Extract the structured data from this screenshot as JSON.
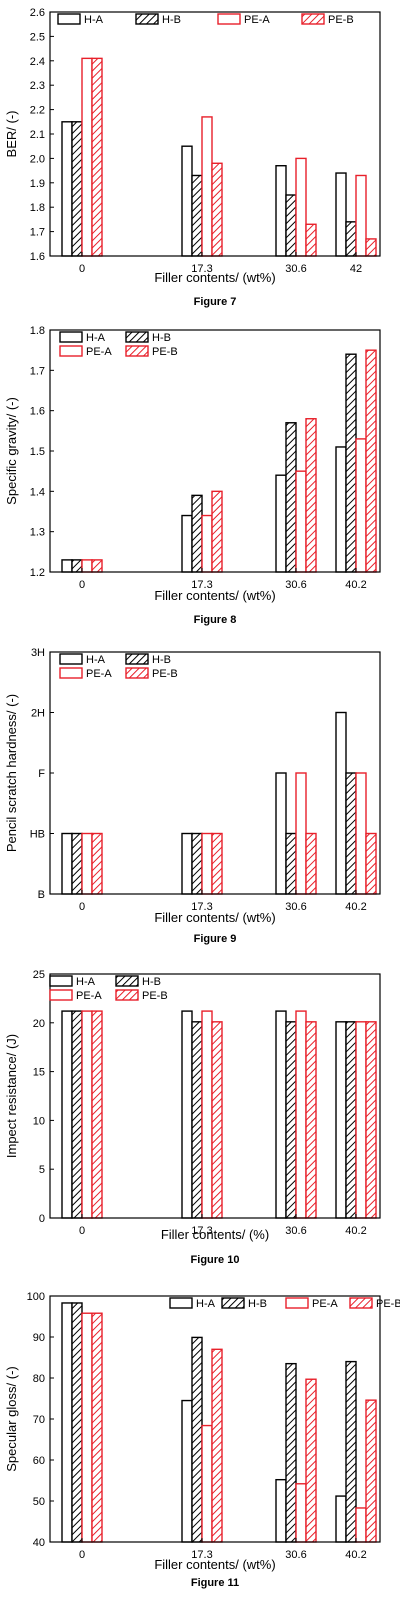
{
  "series_styles": [
    {
      "stroke": "#000000",
      "hatch": false
    },
    {
      "stroke": "#000000",
      "hatch": true
    },
    {
      "stroke": "#e8202a",
      "hatch": false
    },
    {
      "stroke": "#e8202a",
      "hatch": true
    }
  ],
  "chart_data": [
    {
      "type": "bar",
      "caption": "Figure 7",
      "xlabel": "Filler contents/ (wt%)",
      "ylabel": "BER/ (-)",
      "categories": [
        "0",
        "17.3",
        "30.6",
        "42"
      ],
      "ylim": [
        1.6,
        2.6
      ],
      "yticks": [
        "1.6",
        "1.7",
        "1.8",
        "1.9",
        "2.0",
        "2.1",
        "2.2",
        "2.3",
        "2.4",
        "2.5",
        "2.6"
      ],
      "legend_placement": "top-left",
      "series": [
        {
          "name": "H-A",
          "values": [
            2.15,
            2.05,
            1.97,
            1.94
          ]
        },
        {
          "name": "H-B",
          "values": [
            2.15,
            1.93,
            1.85,
            1.74
          ]
        },
        {
          "name": "PE-A",
          "values": [
            2.41,
            2.17,
            2.0,
            1.93
          ]
        },
        {
          "name": "PE-B",
          "values": [
            2.41,
            1.98,
            1.73,
            1.67
          ]
        }
      ]
    },
    {
      "type": "bar",
      "caption": "Figure 8",
      "xlabel": "Filler contents/ (wt%)",
      "ylabel": "Specific gravity/ (-)",
      "categories": [
        "0",
        "17.3",
        "30.6",
        "40.2"
      ],
      "ylim": [
        1.2,
        1.8
      ],
      "yticks": [
        "1.2",
        "1.3",
        "1.4",
        "1.5",
        "1.6",
        "1.7",
        "1.8"
      ],
      "legend_placement": "top-left",
      "series": [
        {
          "name": "H-A",
          "values": [
            1.23,
            1.34,
            1.44,
            1.51
          ]
        },
        {
          "name": "H-B",
          "values": [
            1.23,
            1.39,
            1.57,
            1.74
          ]
        },
        {
          "name": "PE-A",
          "values": [
            1.23,
            1.34,
            1.45,
            1.53
          ]
        },
        {
          "name": "PE-B",
          "values": [
            1.23,
            1.4,
            1.58,
            1.75
          ]
        }
      ]
    },
    {
      "type": "bar",
      "caption": "Figure 9",
      "xlabel": "Filler contents/ (wt%)",
      "ylabel": "Pencil scratch hardness/ (-)",
      "categories": [
        "0",
        "17.3",
        "30.6",
        "40.2"
      ],
      "ylim": [
        0,
        4
      ],
      "yticks": [
        "B",
        "HB",
        "F",
        "2H",
        "3H"
      ],
      "legend_placement": "top-left",
      "series": [
        {
          "name": "H-A",
          "values": [
            1,
            1,
            2,
            3
          ]
        },
        {
          "name": "H-B",
          "values": [
            1,
            1,
            1,
            2
          ]
        },
        {
          "name": "PE-A",
          "values": [
            1,
            1,
            2,
            2
          ]
        },
        {
          "name": "PE-B",
          "values": [
            1,
            1,
            1,
            1
          ]
        }
      ]
    },
    {
      "type": "bar",
      "caption": "Figure 10",
      "xlabel": "Filler contents/ (%)",
      "ylabel": "Impect resistance/ (J)",
      "categories": [
        "0",
        "17.3",
        "30.6",
        "40.2"
      ],
      "ylim": [
        0,
        25
      ],
      "yticks": [
        "0",
        "5",
        "10",
        "15",
        "20",
        "25"
      ],
      "legend_placement": "top-left",
      "series": [
        {
          "name": "H-A",
          "values": [
            21.2,
            21.2,
            21.2,
            20.1
          ]
        },
        {
          "name": "H-B",
          "values": [
            21.2,
            20.1,
            20.1,
            20.1
          ]
        },
        {
          "name": "PE-A",
          "values": [
            21.2,
            21.2,
            21.2,
            20.1
          ]
        },
        {
          "name": "PE-B",
          "values": [
            21.2,
            20.1,
            20.1,
            20.1
          ]
        }
      ]
    },
    {
      "type": "bar",
      "caption": "Figure 11",
      "xlabel": "Filler contents/ (wt%)",
      "ylabel": "Specular gloss/ (-)",
      "categories": [
        "0",
        "17.3",
        "30.6",
        "40.2"
      ],
      "ylim": [
        40,
        100
      ],
      "yticks": [
        "40",
        "50",
        "60",
        "70",
        "80",
        "90",
        "100"
      ],
      "legend_placement": "top-right",
      "series": [
        {
          "name": "H-A",
          "values": [
            98.3,
            74.5,
            55.2,
            51.2
          ]
        },
        {
          "name": "H-B",
          "values": [
            98.3,
            89.9,
            83.5,
            84.0
          ]
        },
        {
          "name": "PE-A",
          "values": [
            95.8,
            68.4,
            54.2,
            48.3
          ]
        },
        {
          "name": "PE-B",
          "values": [
            95.8,
            87.0,
            79.7,
            74.6
          ]
        }
      ]
    }
  ]
}
